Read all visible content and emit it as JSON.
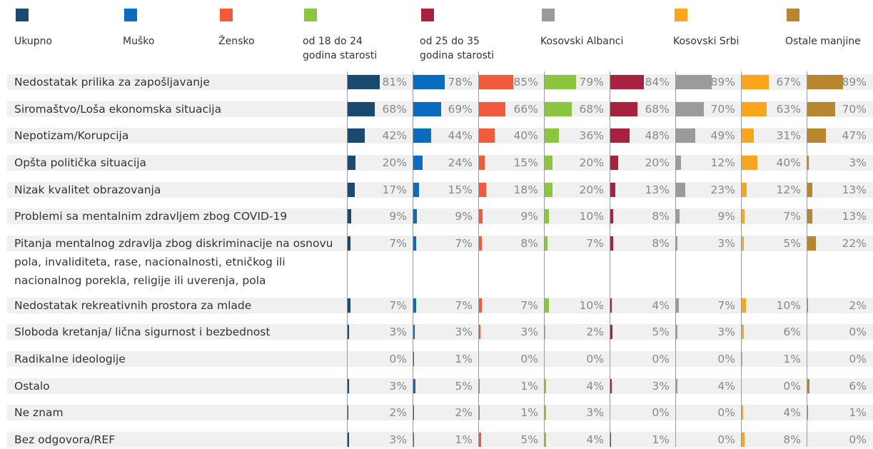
{
  "chart_data": {
    "type": "bar",
    "orientation": "horizontal",
    "categories": [
      "Nedostatak prilika za zapošljavanje",
      "Siromaštvo/Loša ekonomska situacija",
      "Nepotizam/Korupcija",
      "Opšta politička situacija",
      "Nizak kvalitet obrazovanja",
      "Problemi sa mentalnim zdravljem zbog COVID-19",
      "Pitanja mentalnog zdravlja zbog diskriminacije na osnovu pola, invaliditeta, rase, nacionalnosti, etničkog ili nacionalnog porekla, religije ili uverenja, pola",
      "Nedostatak rekreativnih prostora za mlade",
      "Sloboda kretanja/ lična sigurnost i bezbednost",
      "Radikalne ideologije",
      "Ostalo",
      "Ne znam",
      "Bez odgovora/REF"
    ],
    "series": [
      {
        "name": "Ukupno",
        "color": "#1a4a72",
        "values": [
          81,
          68,
          42,
          20,
          17,
          9,
          7,
          7,
          3,
          0,
          3,
          2,
          3
        ],
        "value_labels": [
          "81%",
          "68%",
          "42%",
          "20%",
          "17%",
          "9%",
          "7%",
          "7%",
          "3%",
          "0%",
          "3%",
          "2%",
          "3%"
        ]
      },
      {
        "name": "Muško",
        "color": "#0a6bbf",
        "values": [
          78,
          69,
          44,
          24,
          15,
          9,
          7,
          7,
          3,
          1,
          5,
          2,
          1
        ],
        "value_labels": [
          "78%",
          "69%",
          "44%",
          "24%",
          "15%",
          "9%",
          "7%",
          "7%",
          "3%",
          "1%",
          "5%",
          "2%",
          "1%"
        ]
      },
      {
        "name": "Žensko",
        "color": "#f15a3a",
        "values": [
          85,
          66,
          40,
          15,
          18,
          9,
          8,
          7,
          3,
          0,
          1,
          1,
          5
        ],
        "value_labels": [
          "85%",
          "66%",
          "40%",
          "15%",
          "18%",
          "9%",
          "8%",
          "7%",
          "3%",
          "0%",
          "1%",
          "1%",
          "5%"
        ]
      },
      {
        "name": "od 18 do 24 godina starosti",
        "color": "#8cc63f",
        "values": [
          79,
          68,
          36,
          20,
          20,
          10,
          7,
          10,
          2,
          0,
          4,
          3,
          4
        ],
        "value_labels": [
          "79%",
          "68%",
          "36%",
          "20%",
          "20%",
          "10%",
          "7%",
          "10%",
          "2%",
          "0%",
          "4%",
          "3%",
          "4%"
        ]
      },
      {
        "name": "od 25 do 35 godina starosti",
        "color": "#a8213f",
        "values": [
          84,
          68,
          48,
          20,
          13,
          8,
          8,
          4,
          5,
          0,
          3,
          0,
          1
        ],
        "value_labels": [
          "84%",
          "68%",
          "48%",
          "20%",
          "13%",
          "8%",
          "8%",
          "4%",
          "5%",
          "0%",
          "3%",
          "0%",
          "1%"
        ]
      },
      {
        "name": "Kosovski Albanci",
        "color": "#9b9b9b",
        "values": [
          89,
          70,
          49,
          12,
          23,
          9,
          3,
          7,
          3,
          0,
          4,
          0,
          0
        ],
        "value_labels": [
          "89%",
          "70%",
          "49%",
          "12%",
          "23%",
          "9%",
          "3%",
          "7%",
          "3%",
          "0%",
          "4%",
          "0%",
          "0%"
        ]
      },
      {
        "name": "Kosovski Srbi",
        "color": "#f9a61a",
        "values": [
          67,
          63,
          31,
          40,
          12,
          7,
          5,
          10,
          6,
          1,
          0,
          4,
          8
        ],
        "value_labels": [
          "67%",
          "63%",
          "31%",
          "40%",
          "12%",
          "7%",
          "5%",
          "10%",
          "6%",
          "1%",
          "0%",
          "4%",
          "8%"
        ]
      },
      {
        "name": "Ostale manjine",
        "color": "#b8862e",
        "values": [
          89,
          70,
          47,
          3,
          13,
          13,
          22,
          2,
          0,
          0,
          6,
          1,
          0
        ],
        "value_labels": [
          "89%",
          "70%",
          "47%",
          "3%",
          "13%",
          "13%",
          "22%",
          "2%",
          "0%",
          "0%",
          "6%",
          "1%",
          "0%"
        ]
      }
    ]
  }
}
